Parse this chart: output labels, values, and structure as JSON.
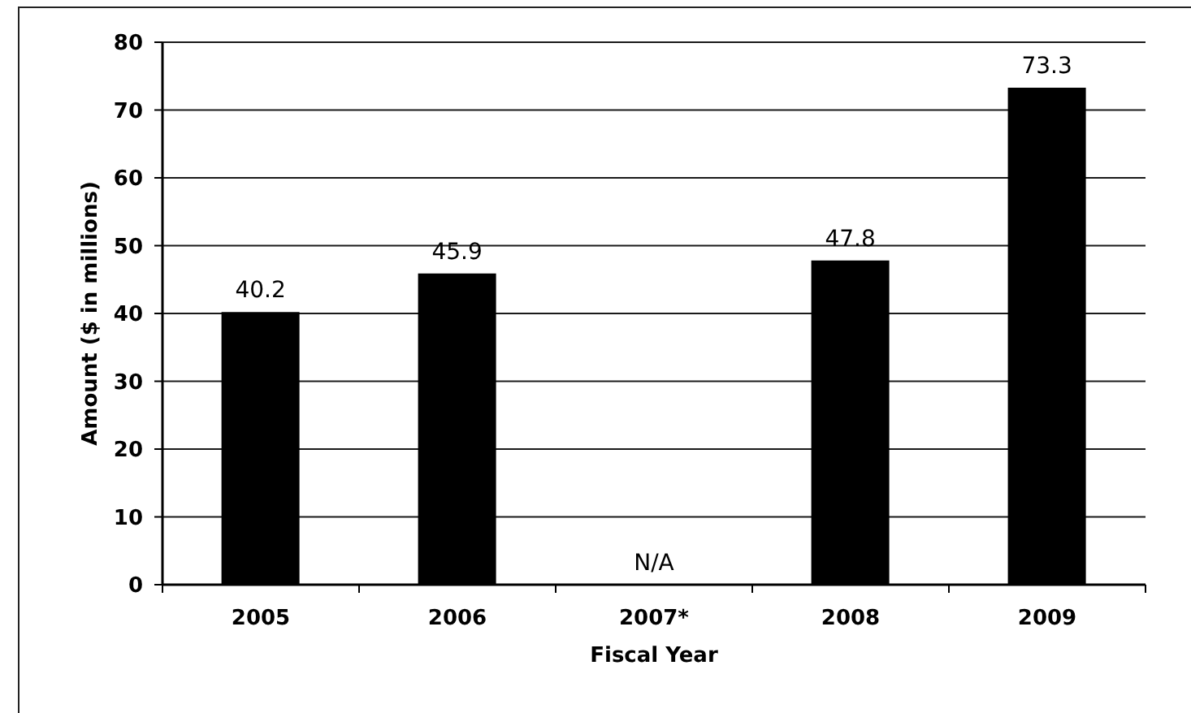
{
  "chart_data": {
    "type": "bar",
    "xlabel": "Fiscal Year",
    "ylabel": "Amount ($ in millions)",
    "categories": [
      "2005",
      "2006",
      "2007*",
      "2008",
      "2009"
    ],
    "values": [
      40.2,
      45.9,
      null,
      47.8,
      73.3
    ],
    "color": "#000000",
    "value_labels": [
      "40.2",
      "45.9",
      "N/A",
      "47.8",
      "73.3"
    ],
    "ylim": [
      0,
      80
    ],
    "yticks": [
      0,
      10,
      20,
      30,
      40,
      50,
      60,
      70,
      80
    ],
    "grid": "y"
  }
}
